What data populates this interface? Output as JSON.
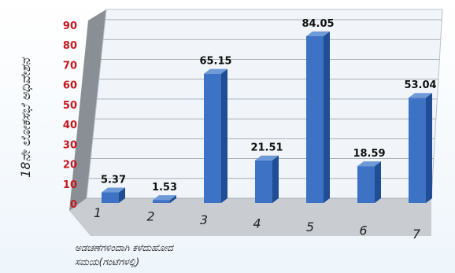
{
  "chart_data": {
    "type": "bar",
    "title": "",
    "ylabel": "18ನೇ ಲೋಕಸಭೆ ಅಧಿವೇಶನ",
    "xlabel_lines": [
      "ಅಡಚಣೆಗಳಿಂದಾಗಿ ಕಳೆದುಹೋದ",
      "ಸಮಯ(ಗಂಟೆಗಳಲ್ಲಿ)"
    ],
    "categories": [
      "1",
      "2",
      "3",
      "4",
      "5",
      "6",
      "7"
    ],
    "values": [
      5.37,
      1.53,
      65.15,
      21.51,
      84.05,
      18.59,
      53.04
    ],
    "value_labels": [
      "5.37",
      "1.53",
      "65.15",
      "21.51",
      "84.05",
      "18.59",
      "53.04"
    ],
    "ylim": [
      0,
      90
    ],
    "yticks": [
      "0",
      "10",
      "20",
      "30",
      "40",
      "50",
      "60",
      "70",
      "80",
      "90"
    ],
    "grid": true,
    "legend": "none",
    "colors": {
      "bar_front": "#3d72c4",
      "bar_side": "#1f4e94",
      "bar_top": "#6f9ad8",
      "ytick": "#c8161d",
      "wall": "#f1f5f9",
      "side_wall": "#8a8f96",
      "floor": "#c9cdd2"
    }
  }
}
